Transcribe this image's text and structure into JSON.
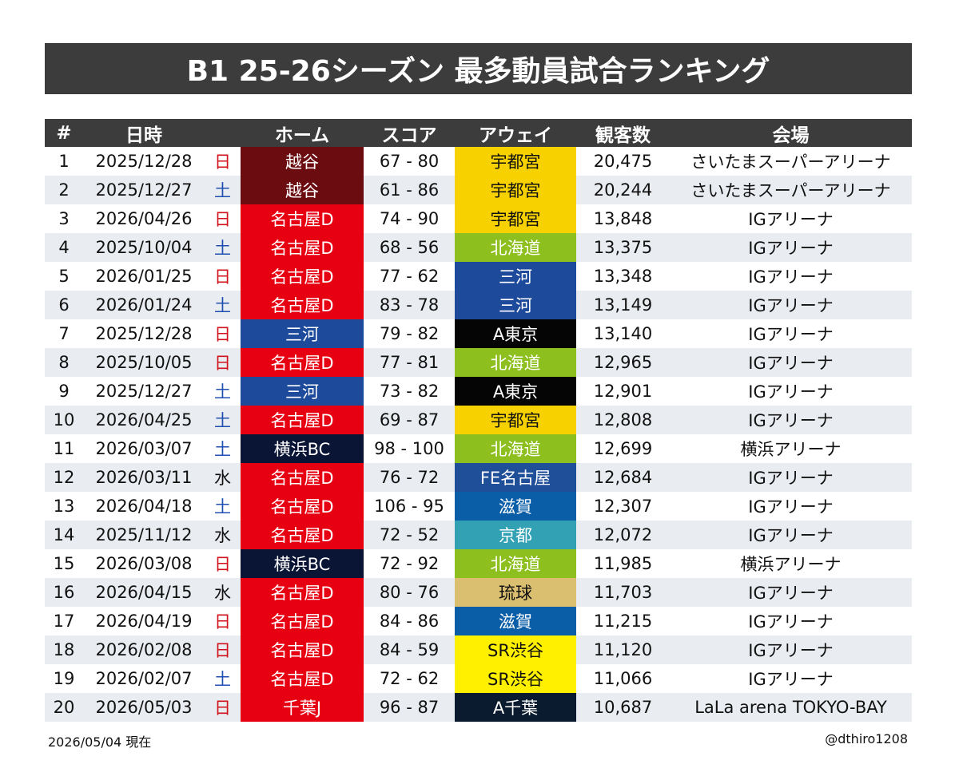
{
  "title": "B1 25-26シーズン 最多動員試合ランキング",
  "headers": {
    "rank": "#",
    "date": "日時",
    "home": "ホーム",
    "score": "スコア",
    "away": "アウェイ",
    "attendance": "観客数",
    "venue": "会場"
  },
  "colors": {
    "header_bg": "#3c3c3c",
    "sunday": "#d0101b",
    "saturday": "#1e4fb0",
    "row_alt": "#e9ecf0",
    "teams": {
      "越谷": "#6b0c11",
      "名古屋D": "#e60012",
      "三河": "#1e4a9c",
      "横浜BC": "#0a1535",
      "千葉J": "#e60012",
      "宇都宮": "#f7d100",
      "北海道": "#8dbf1e",
      "A東京": "#050505",
      "FE名古屋": "#1f4f98",
      "滋賀": "#0a5ea8",
      "京都": "#33a1b4",
      "琉球": "#d9bf6f",
      "SR渋谷": "#fff000",
      "A千葉": "#0a1a2f"
    }
  },
  "rows": [
    {
      "rank": "1",
      "date": "2025/12/28",
      "day": "日",
      "home": "越谷",
      "score": "67 - 80",
      "away": "宇都宮",
      "attendance": "20,475",
      "venue": "さいたまスーパーアリーナ"
    },
    {
      "rank": "2",
      "date": "2025/12/27",
      "day": "土",
      "home": "越谷",
      "score": "61 - 86",
      "away": "宇都宮",
      "attendance": "20,244",
      "venue": "さいたまスーパーアリーナ"
    },
    {
      "rank": "3",
      "date": "2026/04/26",
      "day": "日",
      "home": "名古屋D",
      "score": "74 - 90",
      "away": "宇都宮",
      "attendance": "13,848",
      "venue": "IGアリーナ"
    },
    {
      "rank": "4",
      "date": "2025/10/04",
      "day": "土",
      "home": "名古屋D",
      "score": "68 - 56",
      "away": "北海道",
      "attendance": "13,375",
      "venue": "IGアリーナ"
    },
    {
      "rank": "5",
      "date": "2026/01/25",
      "day": "日",
      "home": "名古屋D",
      "score": "77 - 62",
      "away": "三河",
      "attendance": "13,348",
      "venue": "IGアリーナ"
    },
    {
      "rank": "6",
      "date": "2026/01/24",
      "day": "土",
      "home": "名古屋D",
      "score": "83 - 78",
      "away": "三河",
      "attendance": "13,149",
      "venue": "IGアリーナ"
    },
    {
      "rank": "7",
      "date": "2025/12/28",
      "day": "日",
      "home": "三河",
      "score": "79 - 82",
      "away": "A東京",
      "attendance": "13,140",
      "venue": "IGアリーナ"
    },
    {
      "rank": "8",
      "date": "2025/10/05",
      "day": "日",
      "home": "名古屋D",
      "score": "77 - 81",
      "away": "北海道",
      "attendance": "12,965",
      "venue": "IGアリーナ"
    },
    {
      "rank": "9",
      "date": "2025/12/27",
      "day": "土",
      "home": "三河",
      "score": "73 - 82",
      "away": "A東京",
      "attendance": "12,901",
      "venue": "IGアリーナ"
    },
    {
      "rank": "10",
      "date": "2026/04/25",
      "day": "土",
      "home": "名古屋D",
      "score": "69 - 87",
      "away": "宇都宮",
      "attendance": "12,808",
      "venue": "IGアリーナ"
    },
    {
      "rank": "11",
      "date": "2026/03/07",
      "day": "土",
      "home": "横浜BC",
      "score": "98 - 100",
      "away": "北海道",
      "attendance": "12,699",
      "venue": "横浜アリーナ"
    },
    {
      "rank": "12",
      "date": "2026/03/11",
      "day": "水",
      "home": "名古屋D",
      "score": "76 - 72",
      "away": "FE名古屋",
      "attendance": "12,684",
      "venue": "IGアリーナ"
    },
    {
      "rank": "13",
      "date": "2026/04/18",
      "day": "土",
      "home": "名古屋D",
      "score": "106 - 95",
      "away": "滋賀",
      "attendance": "12,307",
      "venue": "IGアリーナ"
    },
    {
      "rank": "14",
      "date": "2025/11/12",
      "day": "水",
      "home": "名古屋D",
      "score": "72 - 52",
      "away": "京都",
      "attendance": "12,072",
      "venue": "IGアリーナ"
    },
    {
      "rank": "15",
      "date": "2026/03/08",
      "day": "日",
      "home": "横浜BC",
      "score": "72 - 92",
      "away": "北海道",
      "attendance": "11,985",
      "venue": "横浜アリーナ"
    },
    {
      "rank": "16",
      "date": "2026/04/15",
      "day": "水",
      "home": "名古屋D",
      "score": "80 - 76",
      "away": "琉球",
      "attendance": "11,703",
      "venue": "IGアリーナ"
    },
    {
      "rank": "17",
      "date": "2026/04/19",
      "day": "日",
      "home": "名古屋D",
      "score": "84 - 86",
      "away": "滋賀",
      "attendance": "11,215",
      "venue": "IGアリーナ"
    },
    {
      "rank": "18",
      "date": "2026/02/08",
      "day": "日",
      "home": "名古屋D",
      "score": "84 - 59",
      "away": "SR渋谷",
      "attendance": "11,120",
      "venue": "IGアリーナ"
    },
    {
      "rank": "19",
      "date": "2026/02/07",
      "day": "土",
      "home": "名古屋D",
      "score": "72 - 62",
      "away": "SR渋谷",
      "attendance": "11,066",
      "venue": "IGアリーナ"
    },
    {
      "rank": "20",
      "date": "2026/05/03",
      "day": "日",
      "home": "千葉J",
      "score": "96 - 87",
      "away": "A千葉",
      "attendance": "10,687",
      "venue": "LaLa arena TOKYO-BAY"
    }
  ],
  "footer": {
    "as_of": "2026/05/04 現在",
    "credit": "@dthiro1208"
  }
}
